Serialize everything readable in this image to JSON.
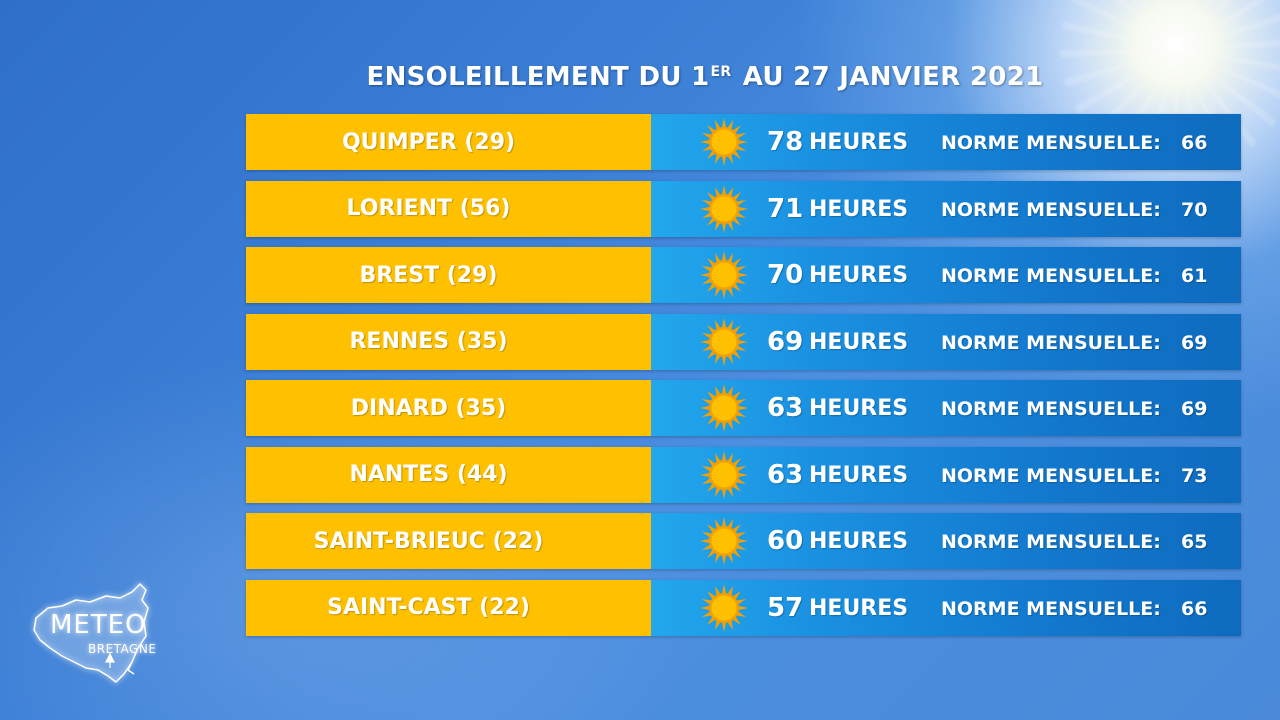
{
  "title": {
    "main_before": "ENSOLEILLEMENT DU 1",
    "superscript": "ER",
    "main_after": " AU 27 JANVIER 2021"
  },
  "icon": "sun-icon",
  "colors": {
    "city_band": "#ffc000",
    "info_band_start": "#22a7ec",
    "info_band_end": "#0e6bbe",
    "sun": "#ffc000"
  },
  "rows": [
    {
      "city": "QUIMPER (29)",
      "hours": "78",
      "unit": "HEURES",
      "norm_label": "NORME MENSUELLE:",
      "norm": "66"
    },
    {
      "city": "LORIENT (56)",
      "hours": "71",
      "unit": "HEURES",
      "norm_label": "NORME MENSUELLE:",
      "norm": "70"
    },
    {
      "city": "BREST (29)",
      "hours": "70",
      "unit": "HEURES",
      "norm_label": "NORME MENSUELLE:",
      "norm": "61"
    },
    {
      "city": "RENNES (35)",
      "hours": "69",
      "unit": "HEURES",
      "norm_label": "NORME MENSUELLE:",
      "norm": "69"
    },
    {
      "city": "DINARD (35)",
      "hours": "63",
      "unit": "HEURES",
      "norm_label": "NORME MENSUELLE:",
      "norm": "69"
    },
    {
      "city": "NANTES (44)",
      "hours": "63",
      "unit": "HEURES",
      "norm_label": "NORME MENSUELLE:",
      "norm": "73"
    },
    {
      "city": "SAINT-BRIEUC (22)",
      "hours": "60",
      "unit": "HEURES",
      "norm_label": "NORME MENSUELLE:",
      "norm": "65"
    },
    {
      "city": "SAINT-CAST (22)",
      "hours": "57",
      "unit": "HEURES",
      "norm_label": "NORME MENSUELLE:",
      "norm": "66"
    }
  ],
  "logo": {
    "line1": "METEO",
    "line2": "BRETAGNE"
  }
}
